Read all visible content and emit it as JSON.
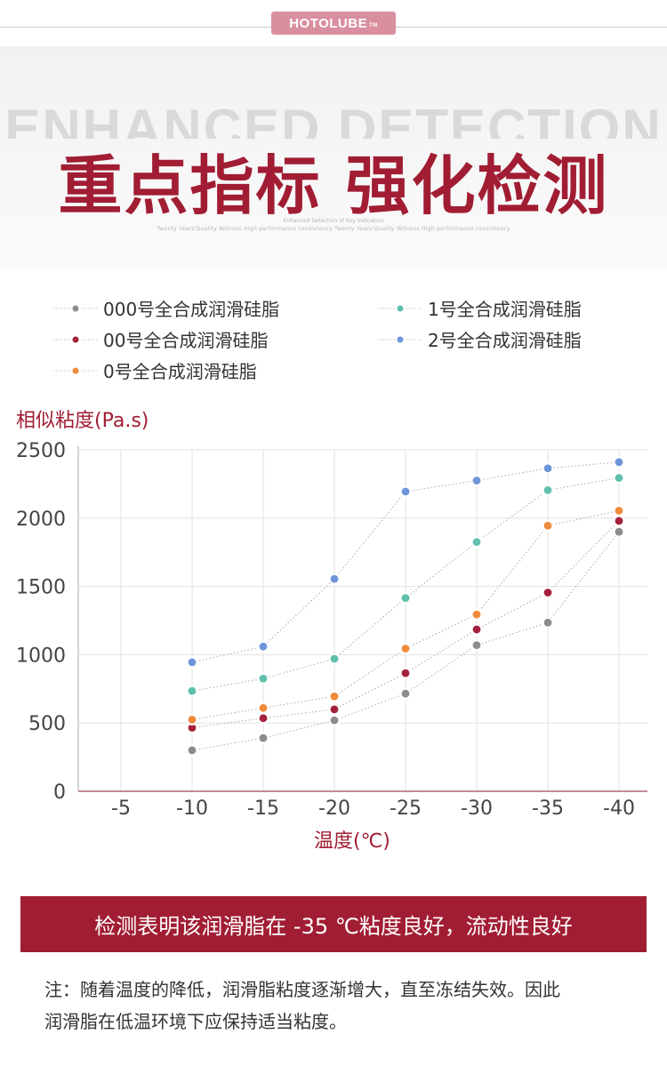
{
  "brand": {
    "name": "HOTOLUBE",
    "tm": "TM"
  },
  "hero": {
    "bg_text": "ENHANCED DETECTION",
    "title": "重点指标 强化检测",
    "sub1": "Enhanced Detection of Key Indicators",
    "sub2": "Twenty Years'Quality Witness High performance consistency Twenty Years'Quality Witness High performance consistency"
  },
  "colors": {
    "accent": "#a11d33",
    "brand_badge": "#d98f9f"
  },
  "chart_data": {
    "type": "line",
    "ylabel": "相似粘度(Pa.s)",
    "xlabel": "温度(℃)",
    "categories": [
      "-5",
      "-10",
      "-15",
      "-20",
      "-25",
      "-30",
      "-35",
      "-40"
    ],
    "ylim": [
      0,
      2500
    ],
    "yticks": [
      0,
      500,
      1000,
      1500,
      2000,
      2500
    ],
    "grid": true,
    "legend_position": "top",
    "series": [
      {
        "name": "000号全合成润滑硅脂",
        "color": "#8c8c8c",
        "values": [
          null,
          300,
          390,
          520,
          715,
          1070,
          1235,
          1900
        ]
      },
      {
        "name": "00号全合成润滑硅脂",
        "color": "#a3213a",
        "values": [
          null,
          465,
          535,
          600,
          865,
          1185,
          1455,
          1980
        ]
      },
      {
        "name": "0号全合成润滑硅脂",
        "color": "#ee8a3a",
        "values": [
          null,
          525,
          610,
          695,
          1045,
          1295,
          1945,
          2055
        ]
      },
      {
        "name": "1号全合成润滑硅脂",
        "color": "#5fc0ad",
        "values": [
          null,
          735,
          825,
          970,
          1415,
          1825,
          2205,
          2295
        ]
      },
      {
        "name": "2号全合成润滑硅脂",
        "color": "#6e95d8",
        "values": [
          null,
          945,
          1060,
          1555,
          2195,
          2275,
          2365,
          2410
        ]
      }
    ]
  },
  "banner": {
    "text": "检测表明该润滑脂在 -35 ℃粘度良好，流动性良好"
  },
  "note": {
    "line1": "注：随着温度的降低，润滑脂粘度逐渐增大，直至冻结失效。因此",
    "line2": "润滑脂在低温环境下应保持适当粘度。"
  }
}
